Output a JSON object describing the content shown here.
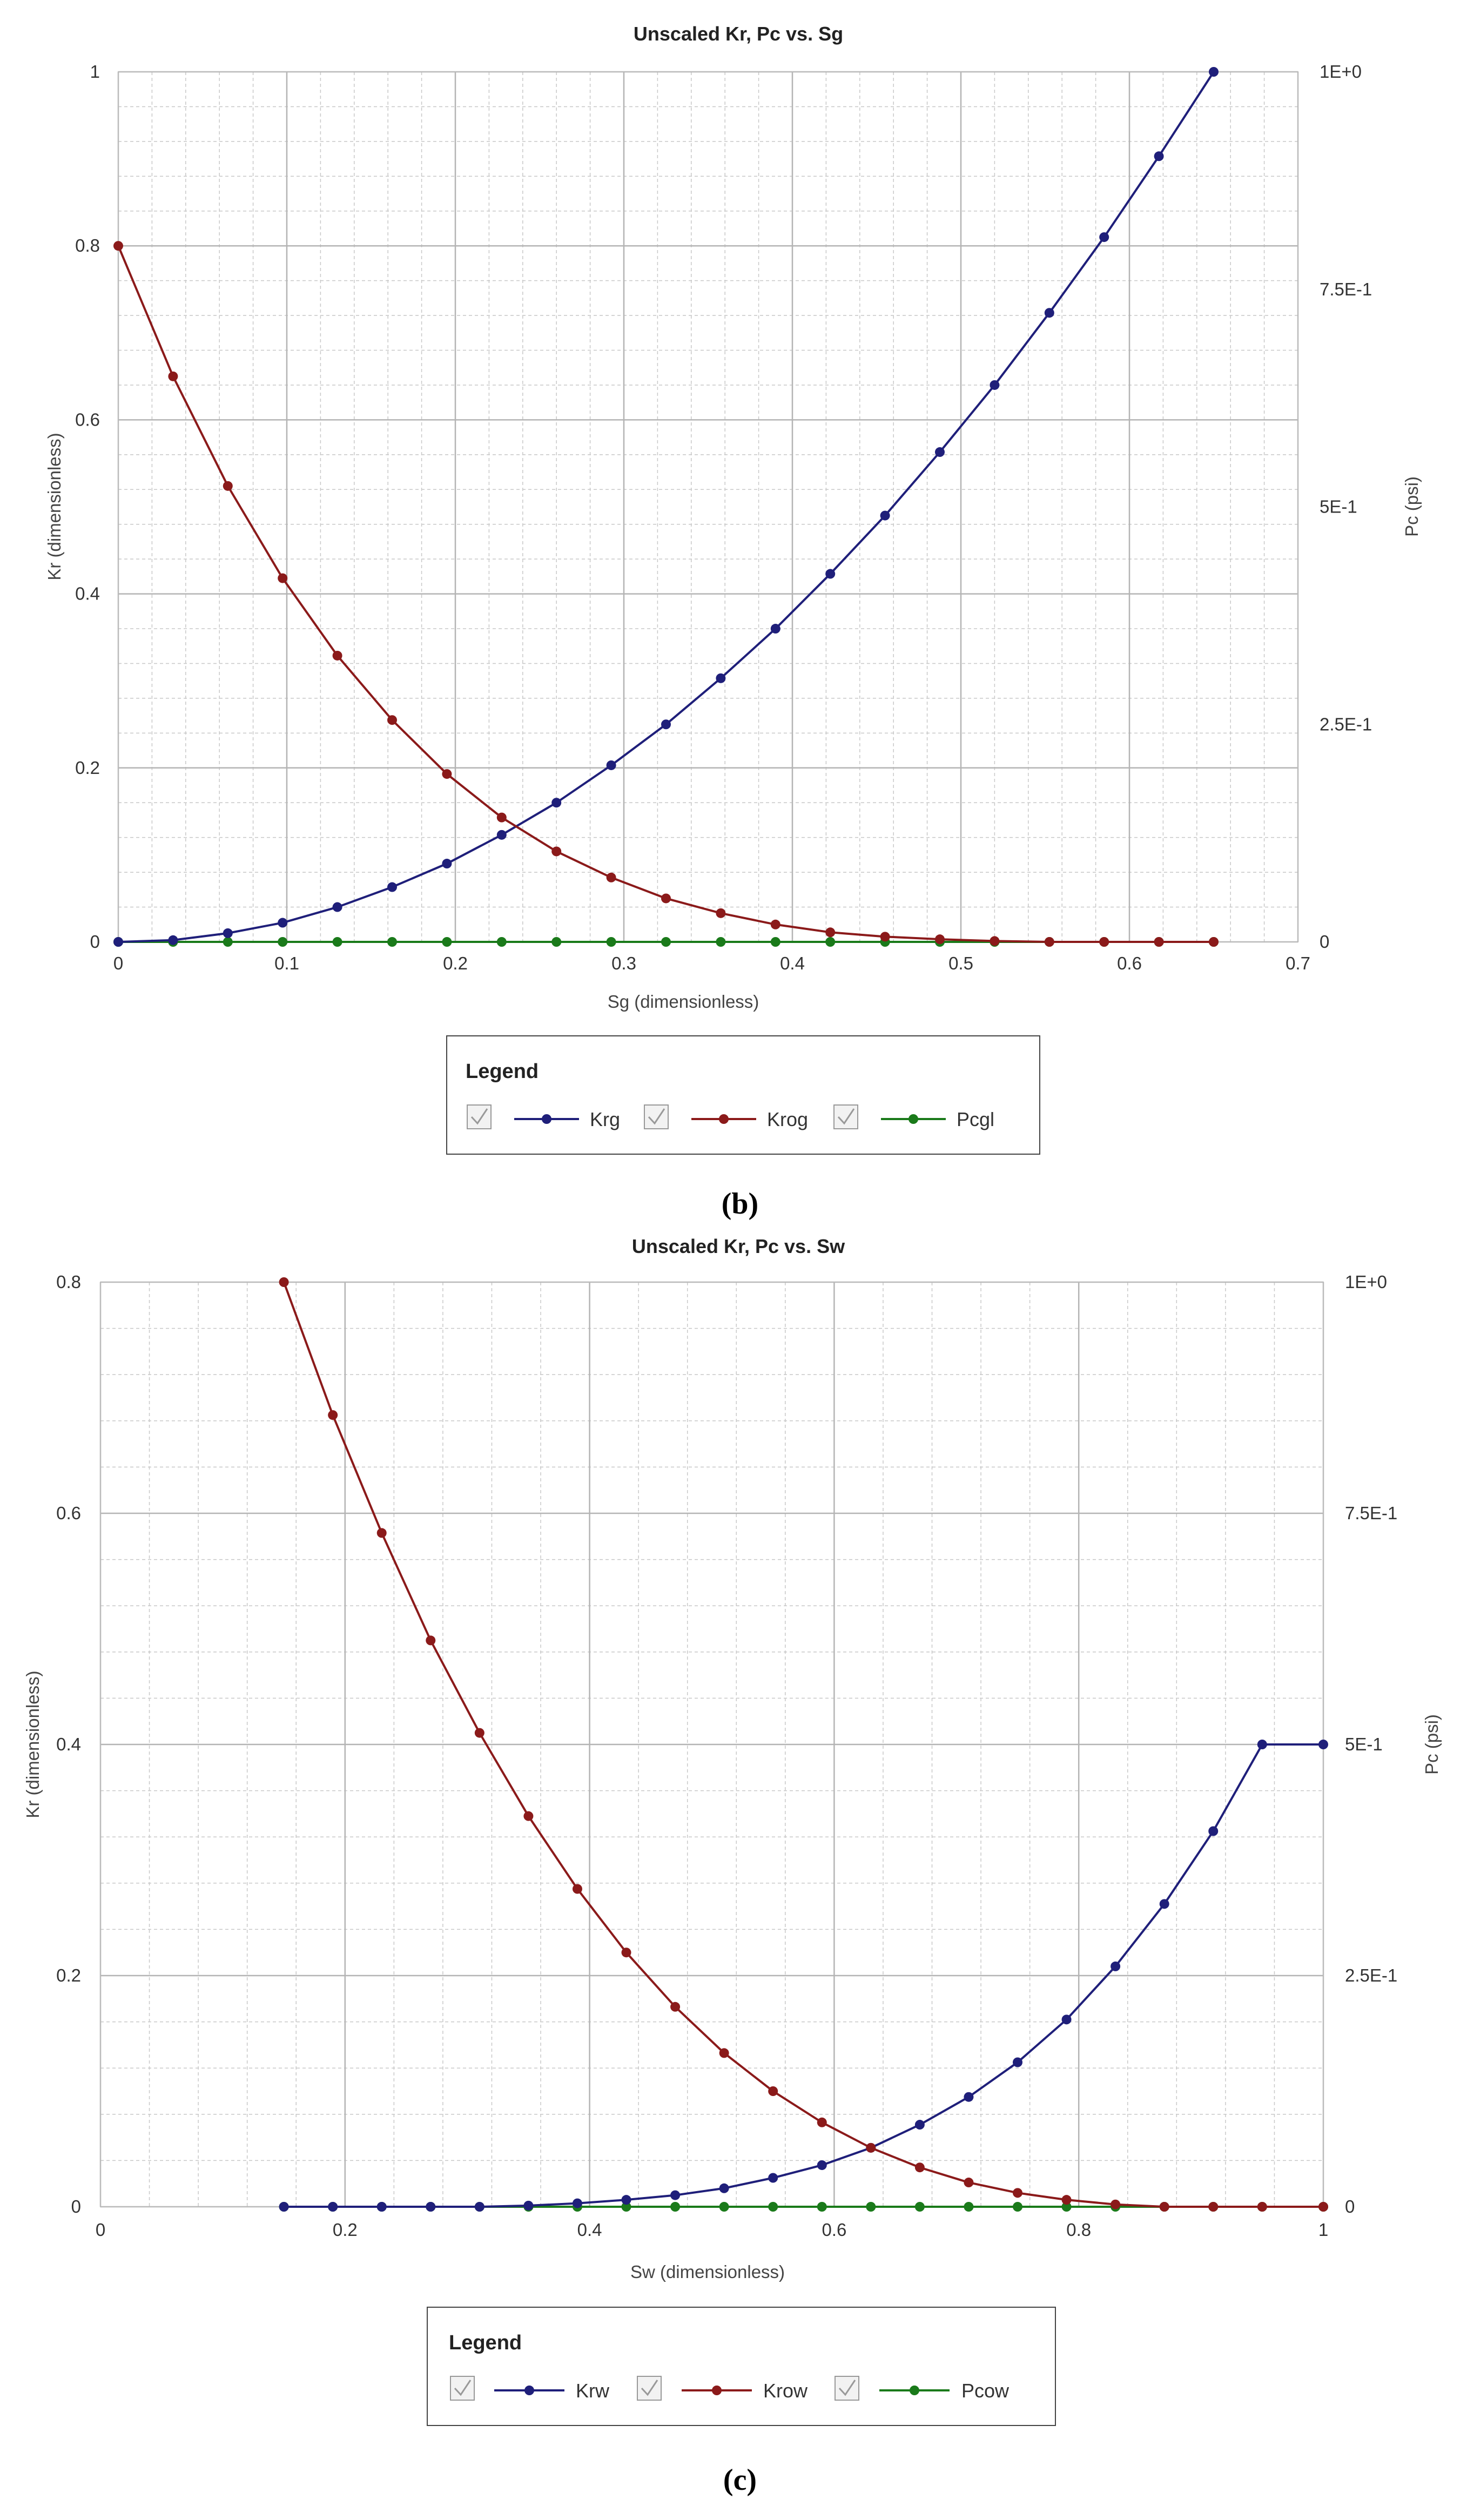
{
  "charts": [
    {
      "title": "Unscaled Kr, Pc vs. Sg",
      "xlabel": "Sg (dimensionless)",
      "ylabel": "Kr (dimensionless)",
      "y2label": "Pc (psi)",
      "xticks": [
        "0",
        "0.1",
        "0.2",
        "0.3",
        "0.4",
        "0.5",
        "0.6",
        "0.7"
      ],
      "yticks": [
        "0",
        "0.2",
        "0.4",
        "0.6",
        "0.8",
        "1"
      ],
      "y2ticks": [
        "0",
        "2.5E-1",
        "5E-1",
        "7.5E-1",
        "1E+0"
      ],
      "legend": {
        "title": "Legend",
        "items": [
          "Krg",
          "Krog",
          "Pcgl"
        ]
      },
      "caption": "(b)"
    },
    {
      "title": "Unscaled Kr, Pc vs. Sw",
      "xlabel": "Sw (dimensionless)",
      "ylabel": "Kr (dimensionless)",
      "y2label": "Pc (psi)",
      "xticks": [
        "0",
        "0.2",
        "0.4",
        "0.6",
        "0.8",
        "1"
      ],
      "yticks": [
        "0",
        "0.2",
        "0.4",
        "0.6",
        "0.8"
      ],
      "y2ticks": [
        "0",
        "2.5E-1",
        "5E-1",
        "7.5E-1",
        "1E+0"
      ],
      "legend": {
        "title": "Legend",
        "items": [
          "Krw",
          "Krow",
          "Pcow"
        ]
      },
      "caption": "(c)"
    }
  ],
  "chart_data": [
    {
      "type": "line",
      "title": "Unscaled Kr, Pc vs. Sg",
      "xlabel": "Sg (dimensionless)",
      "ylabel": "Kr (dimensionless)",
      "y2label": "Pc (psi)",
      "xlim": [
        0,
        0.7
      ],
      "ylim": [
        0,
        1
      ],
      "y2lim": [
        0,
        1
      ],
      "xtick_step": 0.1,
      "ytick_step": 0.2,
      "grid": true,
      "legend_position": "bottom",
      "series": [
        {
          "name": "Krg",
          "axis": "left",
          "color": "#1f1f7a",
          "x": [
            0,
            0.0325,
            0.065,
            0.0975,
            0.13,
            0.1625,
            0.195,
            0.2275,
            0.26,
            0.2925,
            0.325,
            0.3575,
            0.39,
            0.4225,
            0.455,
            0.4875,
            0.52,
            0.5525,
            0.585,
            0.6175,
            0.65
          ],
          "y": [
            0,
            0.002,
            0.01,
            0.022,
            0.04,
            0.063,
            0.09,
            0.123,
            0.16,
            0.203,
            0.25,
            0.303,
            0.36,
            0.423,
            0.49,
            0.563,
            0.64,
            0.723,
            0.81,
            0.903,
            1.0
          ]
        },
        {
          "name": "Krog",
          "axis": "left",
          "color": "#8b1a1a",
          "x": [
            0,
            0.0325,
            0.065,
            0.0975,
            0.13,
            0.1625,
            0.195,
            0.2275,
            0.26,
            0.2925,
            0.325,
            0.3575,
            0.39,
            0.4225,
            0.455,
            0.4875,
            0.52,
            0.5525,
            0.585,
            0.6175,
            0.65
          ],
          "y": [
            0.8,
            0.65,
            0.524,
            0.418,
            0.329,
            0.255,
            0.193,
            0.143,
            0.104,
            0.074,
            0.05,
            0.033,
            0.02,
            0.011,
            0.006,
            0.003,
            0.001,
            0.0,
            0.0,
            0.0,
            0.0
          ]
        },
        {
          "name": "Pcgl",
          "axis": "right",
          "color": "#1a7a1a",
          "x": [
            0,
            0.0325,
            0.065,
            0.0975,
            0.13,
            0.1625,
            0.195,
            0.2275,
            0.26,
            0.2925,
            0.325,
            0.3575,
            0.39,
            0.4225,
            0.455,
            0.4875,
            0.52,
            0.5525,
            0.585,
            0.6175,
            0.65
          ],
          "y": [
            0,
            0,
            0,
            0,
            0,
            0,
            0,
            0,
            0,
            0,
            0,
            0,
            0,
            0,
            0,
            0,
            0,
            0,
            0,
            0,
            0
          ]
        }
      ]
    },
    {
      "type": "line",
      "title": "Unscaled Kr, Pc vs. Sw",
      "xlabel": "Sw (dimensionless)",
      "ylabel": "Kr (dimensionless)",
      "y2label": "Pc (psi)",
      "xlim": [
        0,
        1
      ],
      "ylim": [
        0,
        0.8
      ],
      "y2lim": [
        0,
        1
      ],
      "xtick_step": 0.2,
      "ytick_step": 0.2,
      "grid": true,
      "legend_position": "bottom",
      "series": [
        {
          "name": "Krw",
          "axis": "left",
          "color": "#1f1f7a",
          "x": [
            0.15,
            0.19,
            0.23,
            0.27,
            0.31,
            0.35,
            0.39,
            0.43,
            0.47,
            0.51,
            0.55,
            0.59,
            0.63,
            0.67,
            0.71,
            0.75,
            0.79,
            0.83,
            0.87,
            0.91,
            0.95,
            1.0
          ],
          "y": [
            0,
            0,
            0,
            0,
            0,
            0.001,
            0.003,
            0.006,
            0.01,
            0.016,
            0.025,
            0.036,
            0.051,
            0.071,
            0.095,
            0.125,
            0.162,
            0.208,
            0.262,
            0.325,
            0.4,
            0.4
          ]
        },
        {
          "name": "Krow",
          "axis": "left",
          "color": "#8b1a1a",
          "x": [
            0.15,
            0.19,
            0.23,
            0.27,
            0.31,
            0.35,
            0.39,
            0.43,
            0.47,
            0.51,
            0.55,
            0.59,
            0.63,
            0.67,
            0.71,
            0.75,
            0.79,
            0.83,
            0.87,
            0.91,
            0.95,
            1.0
          ],
          "y": [
            0.8,
            0.685,
            0.583,
            0.49,
            0.41,
            0.338,
            0.275,
            0.22,
            0.173,
            0.133,
            0.1,
            0.073,
            0.051,
            0.034,
            0.021,
            0.012,
            0.006,
            0.002,
            0.0,
            0.0,
            0.0,
            0.0
          ]
        },
        {
          "name": "Pcow",
          "axis": "right",
          "color": "#1a7a1a",
          "x": [
            0.15,
            0.19,
            0.23,
            0.27,
            0.31,
            0.35,
            0.39,
            0.43,
            0.47,
            0.51,
            0.55,
            0.59,
            0.63,
            0.67,
            0.71,
            0.75,
            0.79,
            0.83,
            0.87,
            0.91,
            0.95,
            1.0
          ],
          "y": [
            0,
            0,
            0,
            0,
            0,
            0,
            0,
            0,
            0,
            0,
            0,
            0,
            0,
            0,
            0,
            0,
            0,
            0,
            0,
            0,
            0,
            0
          ]
        }
      ]
    }
  ]
}
